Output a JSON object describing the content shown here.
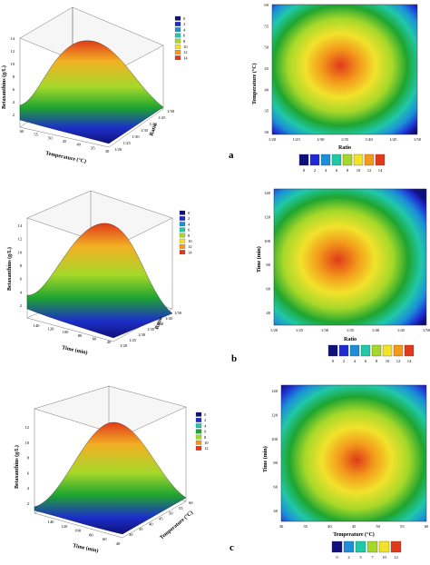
{
  "palette": [
    "#10107a",
    "#1e2bd0",
    "#1c8fd8",
    "#20c8a8",
    "#1fa52f",
    "#a6d82a",
    "#f2e22b",
    "#f39a1b",
    "#e03a1a"
  ],
  "panels": [
    {
      "letter": "a",
      "surface": {
        "zlabel": "Betaxanthins (g/L)",
        "ztick_labels": [
          "2",
          "4",
          "6",
          "8",
          "10",
          "12",
          "14"
        ],
        "xlabel": "Temperature (°C)",
        "xtick_labels": [
          "60",
          "55",
          "50",
          "45",
          "40",
          "35",
          "30"
        ],
        "ylabel": "Ratio",
        "ytick_labels": [
          "1/20",
          "1/25",
          "1/30",
          "1/35",
          "1/40",
          "1/45",
          "1/50"
        ],
        "legend": [
          "0",
          "2",
          "4",
          "6",
          "8",
          "10",
          "12",
          "14"
        ]
      },
      "contour": {
        "xlabel": "Ratio",
        "xtick_labels": [
          "1/20",
          "1/25",
          "1/30",
          "1/35",
          "1/40",
          "1/45",
          "1/50"
        ],
        "ylabel": "Temperature (°C)",
        "ytick_labels": [
          "30",
          "35",
          "40",
          "45",
          "50",
          "55",
          "60"
        ],
        "colorbar_labels": [
          "0",
          "2",
          "4",
          "6",
          "8",
          "10",
          "12",
          "14"
        ]
      }
    },
    {
      "letter": "b",
      "surface": {
        "zlabel": "Betaxanthins (g/L)",
        "ztick_labels": [
          "2",
          "4",
          "6",
          "8",
          "10",
          "12",
          "14"
        ],
        "xlabel": "Time (min)",
        "xtick_labels": [
          "140",
          "120",
          "100",
          "80",
          "60",
          "40"
        ],
        "ylabel": "Ratio",
        "ytick_labels": [
          "1/20",
          "1/25",
          "1/30",
          "1/35",
          "1/40",
          "1/45",
          "1/50"
        ],
        "legend": [
          "0",
          "2",
          "4",
          "6",
          "8",
          "10",
          "12",
          "14"
        ]
      },
      "contour": {
        "xlabel": "Ratio",
        "xtick_labels": [
          "1/20",
          "1/25",
          "1/30",
          "1/35",
          "1/40",
          "1/45",
          "1/50"
        ],
        "ylabel": "Time (min)",
        "ytick_labels": [
          "40",
          "60",
          "80",
          "100",
          "120",
          "140"
        ],
        "colorbar_labels": [
          "0",
          "2",
          "4",
          "6",
          "8",
          "10",
          "12",
          "14"
        ]
      }
    },
    {
      "letter": "c",
      "surface": {
        "zlabel": "Betaxanthins (g/L)",
        "ztick_labels": [
          "2",
          "4",
          "6",
          "8",
          "10",
          "12"
        ],
        "xlabel": "Time (min)",
        "xtick_labels": [
          "140",
          "120",
          "100",
          "80",
          "60",
          "40"
        ],
        "ylabel": "Temperature (°C)",
        "ytick_labels": [
          "30",
          "35",
          "40",
          "45",
          "50",
          "55",
          "60"
        ],
        "legend": [
          "0",
          "2",
          "4",
          "6",
          "8",
          "10",
          "12"
        ]
      },
      "contour": {
        "xlabel": "Temperature (°C)",
        "xtick_labels": [
          "30",
          "35",
          "40",
          "45",
          "50",
          "55",
          "60"
        ],
        "ylabel": "Time (min)",
        "ytick_labels": [
          "40",
          "60",
          "80",
          "100",
          "120",
          "140"
        ],
        "colorbar_labels": [
          "0",
          "2",
          "5",
          "7",
          "10",
          "12"
        ]
      }
    }
  ],
  "chart_data": [
    {
      "type": "surface",
      "title": "",
      "xlabel": "Temperature (°C)",
      "ylabel": "Ratio",
      "zlabel": "Betaxanthins (g/L)",
      "xlim": [
        30,
        60
      ],
      "ylim": [
        "1/20",
        "1/50"
      ],
      "zlim": [
        0,
        14
      ],
      "optimum": {
        "x": 45,
        "y": "1/33",
        "z": 13
      }
    },
    {
      "type": "heatmap",
      "title": "",
      "xlabel": "Ratio",
      "ylabel": "Temperature (°C)",
      "xlim": [
        "1/20",
        "1/50"
      ],
      "ylim": [
        30,
        60
      ],
      "zlim": [
        0,
        14
      ],
      "optimum": {
        "x": "1/33",
        "y": 45,
        "z": 13
      }
    },
    {
      "type": "surface",
      "title": "",
      "xlabel": "Time (min)",
      "ylabel": "Ratio",
      "zlabel": "Betaxanthins (g/L)",
      "xlim": [
        40,
        140
      ],
      "ylim": [
        "1/20",
        "1/50"
      ],
      "zlim": [
        0,
        14
      ],
      "optimum": {
        "x": 90,
        "y": "1/33",
        "z": 13
      }
    },
    {
      "type": "heatmap",
      "title": "",
      "xlabel": "Ratio",
      "ylabel": "Time (min)",
      "xlim": [
        "1/20",
        "1/50"
      ],
      "ylim": [
        40,
        140
      ],
      "zlim": [
        0,
        14
      ],
      "optimum": {
        "x": "1/33",
        "y": 90,
        "z": 13
      }
    },
    {
      "type": "surface",
      "title": "",
      "xlabel": "Time (min)",
      "ylabel": "Temperature (°C)",
      "zlabel": "Betaxanthins (g/L)",
      "xlim": [
        40,
        140
      ],
      "ylim": [
        30,
        60
      ],
      "zlim": [
        0,
        12
      ],
      "optimum": {
        "x": 90,
        "y": 45,
        "z": 12
      }
    },
    {
      "type": "heatmap",
      "title": "",
      "xlabel": "Temperature (°C)",
      "ylabel": "Time (min)",
      "xlim": [
        30,
        60
      ],
      "ylim": [
        40,
        140
      ],
      "zlim": [
        0,
        12
      ],
      "optimum": {
        "x": 45,
        "y": 90,
        "z": 12
      }
    }
  ]
}
